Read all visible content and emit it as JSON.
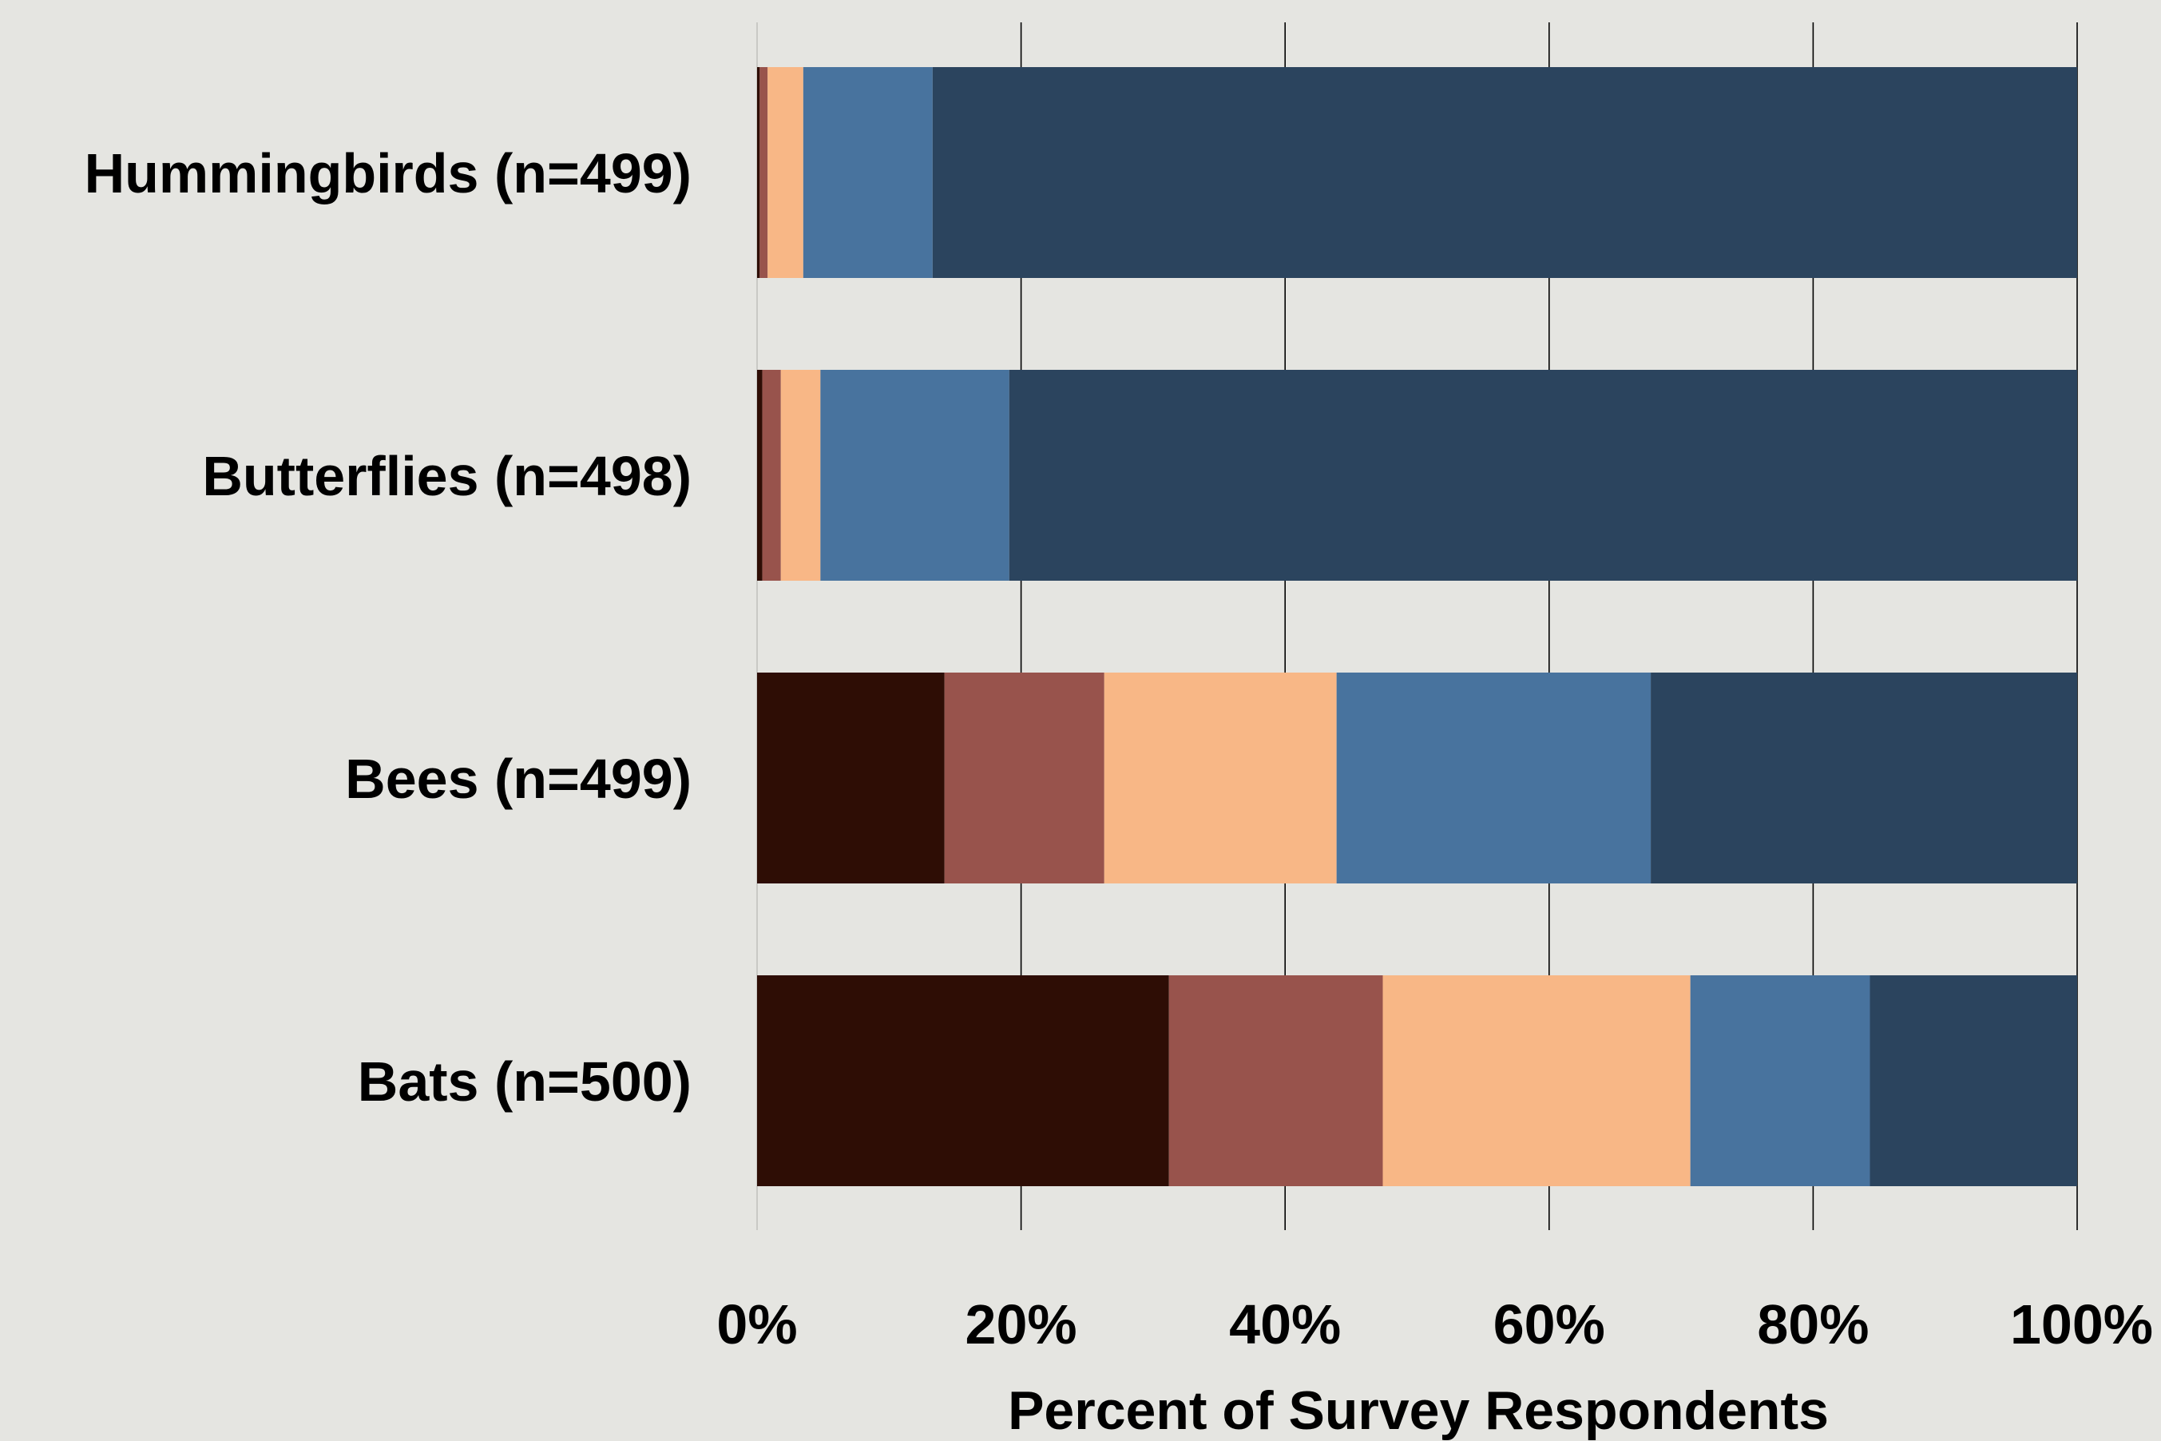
{
  "chart_data": {
    "type": "bar",
    "orientation": "horizontal",
    "stacked": true,
    "stack_normalized_percent": true,
    "categories": [
      "Hummingbirds (n=499)",
      "Butterflies (n=498)",
      "Bees (n=499)",
      "Bats (n=500)"
    ],
    "series": [
      {
        "color": "#2e0d05",
        "values": [
          0.2,
          0.4,
          14.2,
          31.2
        ]
      },
      {
        "color": "#98534c",
        "values": [
          0.6,
          1.4,
          12.1,
          16.2
        ]
      },
      {
        "color": "#f8b786",
        "values": [
          2.7,
          3.0,
          17.6,
          23.3
        ]
      },
      {
        "color": "#48739e",
        "values": [
          9.8,
          14.3,
          23.8,
          13.6
        ]
      },
      {
        "color": "#2b445e",
        "values": [
          86.7,
          80.9,
          32.3,
          15.7
        ]
      }
    ],
    "xlim": [
      0,
      100
    ],
    "xticks": [
      "0%",
      "20%",
      "40%",
      "60%",
      "80%",
      "100%"
    ],
    "xlabel": "Percent of Survey Respondents",
    "ylabel": "",
    "title": "",
    "grid": "vertical",
    "legend": "none"
  },
  "colors": {
    "background": "#e5e5e1",
    "gridline": "#000000"
  }
}
